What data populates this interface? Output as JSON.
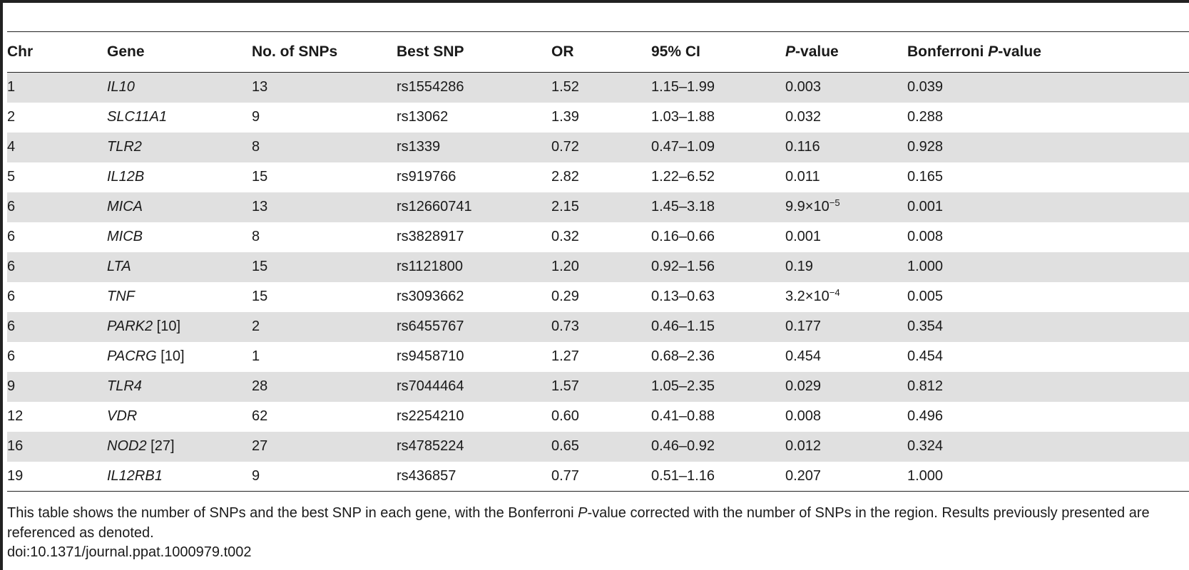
{
  "table": {
    "headers": {
      "chr": "Chr",
      "gene": "Gene",
      "num_snps": "No. of SNPs",
      "best_snp": "Best SNP",
      "or": "OR",
      "ci": "95% CI",
      "pvalue_italic": "P",
      "pvalue_rest": "-value",
      "bonf_prefix": "Bonferroni ",
      "bonf_italic": "P",
      "bonf_rest": "-value"
    },
    "rows": [
      {
        "chr": "1",
        "gene": "IL10",
        "ref": "",
        "num_snps": "13",
        "best_snp": "rs1554286",
        "or": "1.52",
        "ci": "1.15–1.99",
        "p": "0.003",
        "p_exp": "",
        "bonf": "0.039"
      },
      {
        "chr": "2",
        "gene": "SLC11A1",
        "ref": "",
        "num_snps": "9",
        "best_snp": "rs13062",
        "or": "1.39",
        "ci": "1.03–1.88",
        "p": "0.032",
        "p_exp": "",
        "bonf": "0.288"
      },
      {
        "chr": "4",
        "gene": "TLR2",
        "ref": "",
        "num_snps": "8",
        "best_snp": "rs1339",
        "or": "0.72",
        "ci": "0.47–1.09",
        "p": "0.116",
        "p_exp": "",
        "bonf": "0.928"
      },
      {
        "chr": "5",
        "gene": "IL12B",
        "ref": "",
        "num_snps": "15",
        "best_snp": "rs919766",
        "or": "2.82",
        "ci": "1.22–6.52",
        "p": "0.011",
        "p_exp": "",
        "bonf": "0.165"
      },
      {
        "chr": "6",
        "gene": "MICA",
        "ref": "",
        "num_snps": "13",
        "best_snp": "rs12660741",
        "or": "2.15",
        "ci": "1.45–3.18",
        "p": "9.9×10",
        "p_exp": "−5",
        "bonf": "0.001"
      },
      {
        "chr": "6",
        "gene": "MICB",
        "ref": "",
        "num_snps": "8",
        "best_snp": "rs3828917",
        "or": "0.32",
        "ci": "0.16–0.66",
        "p": "0.001",
        "p_exp": "",
        "bonf": "0.008"
      },
      {
        "chr": "6",
        "gene": "LTA",
        "ref": "",
        "num_snps": "15",
        "best_snp": "rs1121800",
        "or": "1.20",
        "ci": "0.92–1.56",
        "p": "0.19",
        "p_exp": "",
        "bonf": "1.000"
      },
      {
        "chr": "6",
        "gene": "TNF",
        "ref": "",
        "num_snps": "15",
        "best_snp": "rs3093662",
        "or": "0.29",
        "ci": "0.13–0.63",
        "p": "3.2×10",
        "p_exp": "−4",
        "bonf": "0.005"
      },
      {
        "chr": "6",
        "gene": "PARK2",
        "ref": " [10]",
        "num_snps": "2",
        "best_snp": "rs6455767",
        "or": "0.73",
        "ci": "0.46–1.15",
        "p": "0.177",
        "p_exp": "",
        "bonf": "0.354"
      },
      {
        "chr": "6",
        "gene": "PACRG",
        "ref": " [10]",
        "num_snps": "1",
        "best_snp": "rs9458710",
        "or": "1.27",
        "ci": "0.68–2.36",
        "p": "0.454",
        "p_exp": "",
        "bonf": "0.454"
      },
      {
        "chr": "9",
        "gene": "TLR4",
        "ref": "",
        "num_snps": "28",
        "best_snp": "rs7044464",
        "or": "1.57",
        "ci": "1.05–2.35",
        "p": "0.029",
        "p_exp": "",
        "bonf": "0.812"
      },
      {
        "chr": "12",
        "gene": "VDR",
        "ref": "",
        "num_snps": "62",
        "best_snp": "rs2254210",
        "or": "0.60",
        "ci": "0.41–0.88",
        "p": "0.008",
        "p_exp": "",
        "bonf": "0.496"
      },
      {
        "chr": "16",
        "gene": "NOD2",
        "ref": " [27]",
        "num_snps": "27",
        "best_snp": "rs4785224",
        "or": "0.65",
        "ci": "0.46–0.92",
        "p": "0.012",
        "p_exp": "",
        "bonf": "0.324"
      },
      {
        "chr": "19",
        "gene": "IL12RB1",
        "ref": "",
        "num_snps": "9",
        "best_snp": "rs436857",
        "or": "0.77",
        "ci": "0.51–1.16",
        "p": "0.207",
        "p_exp": "",
        "bonf": "1.000"
      }
    ]
  },
  "footnote": {
    "before": "This table shows the number of SNPs and the best SNP in each gene, with the Bonferroni ",
    "italic": "P",
    "after": "-value corrected with the number of SNPs in the region. Results previously presented are referenced as denoted."
  },
  "doi": "doi:10.1371/journal.ppat.1000979.t002"
}
